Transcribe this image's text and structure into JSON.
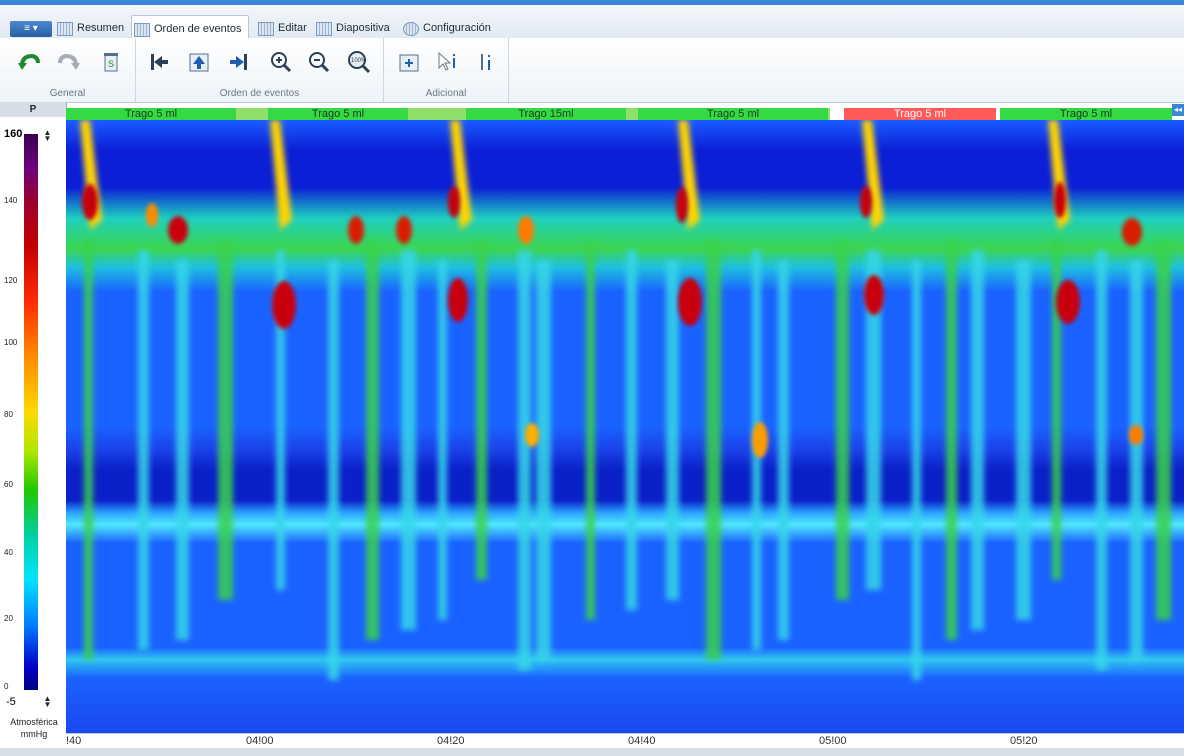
{
  "menu": {
    "app_button": "≡ ▾"
  },
  "tabs": [
    {
      "label": "Resumen"
    },
    {
      "label": "Orden de eventos"
    },
    {
      "label": "Editar"
    },
    {
      "label": "Diapositiva"
    },
    {
      "label": "Configuración"
    }
  ],
  "ribbon": {
    "groups": [
      {
        "label": "General"
      },
      {
        "label": "Orden de eventos"
      },
      {
        "label": "Adicional"
      }
    ],
    "zoom_reset_text": "100%"
  },
  "palette": {
    "header": "P",
    "max": "160",
    "min": "-5",
    "ticks": [
      "140",
      "120",
      "100",
      "80",
      "60",
      "40",
      "20",
      "0"
    ],
    "unit_line1": "Atmosférica",
    "unit_line2": "mmHg"
  },
  "events": [
    {
      "label": "Trago 5 ml"
    },
    {
      "label": "Trago 5 ml"
    },
    {
      "label": "Trago 15ml"
    },
    {
      "label": "Trago 5 ml"
    },
    {
      "label": "Trago 5 ml"
    },
    {
      "label": "Trago 5 ml"
    }
  ],
  "collapse_glyph": "◂◂",
  "time_axis": {
    "labels": [
      "!40",
      "04!00",
      "04!20",
      "04!40",
      "05!00",
      "05!20"
    ]
  },
  "colors": {
    "accent": "#3c86d8",
    "event_green": "#34d944",
    "event_red": "#ff5a5a"
  }
}
